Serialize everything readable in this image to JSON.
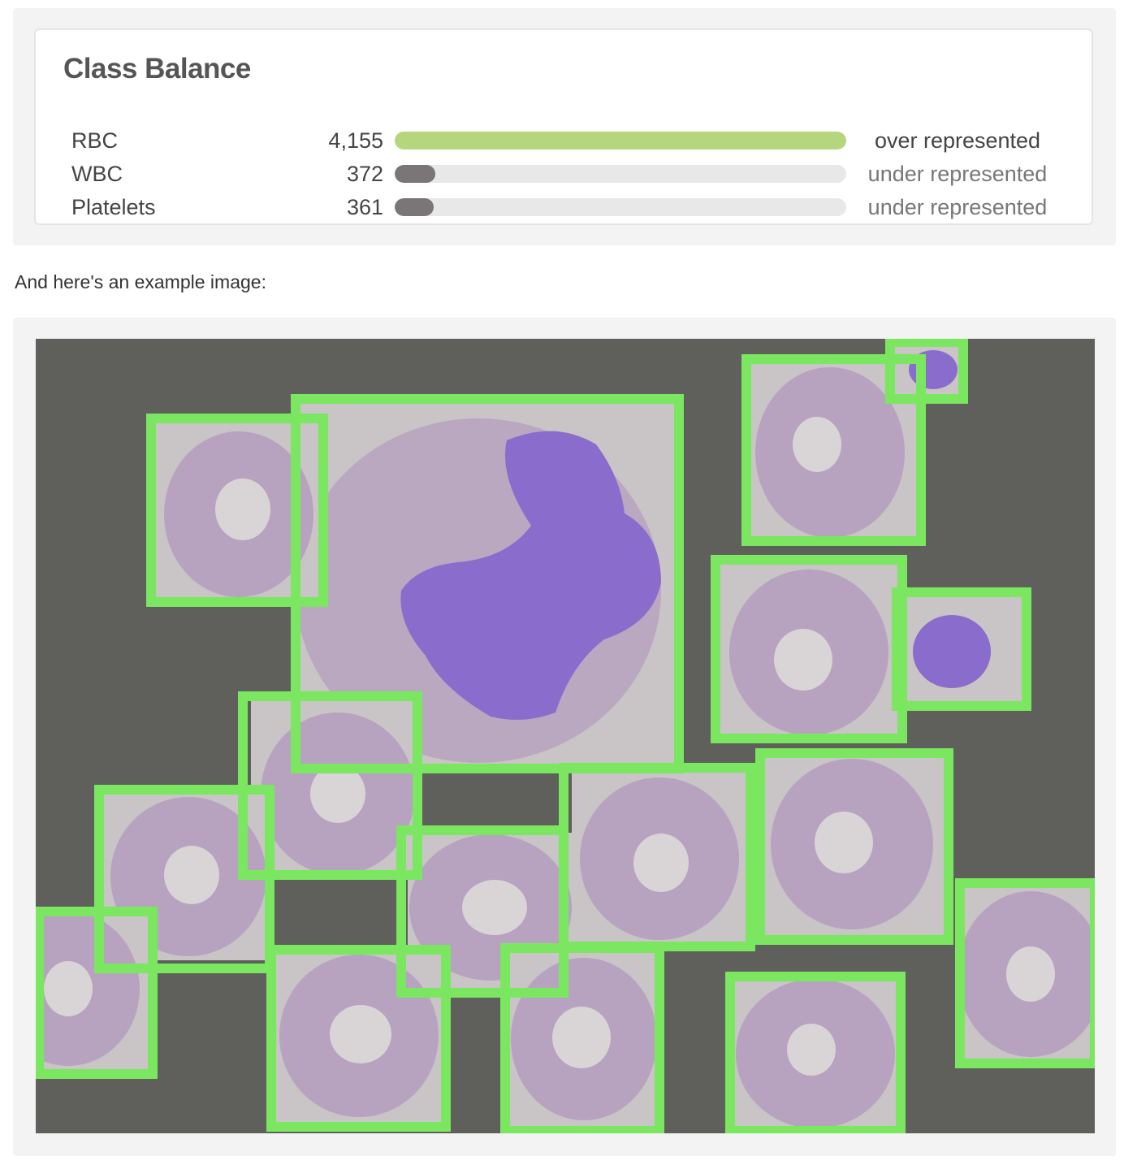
{
  "class_balance": {
    "title": "Class Balance",
    "rows": [
      {
        "label": "RBC",
        "count": "4,155",
        "value": 4155,
        "status": "over represented"
      },
      {
        "label": "WBC",
        "count": "372",
        "value": 372,
        "status": "under represented"
      },
      {
        "label": "Platelets",
        "count": "361",
        "value": 361,
        "status": "under represented"
      }
    ],
    "colors": {
      "over": "#b5d67d",
      "under": "#7a7576",
      "track": "#e8e8e8",
      "status_over": "#444444",
      "status_under": "#777777"
    }
  },
  "caption": "And here's an example image:",
  "example_image": {
    "background": "#5f5f5c",
    "box_color": "#7be660",
    "cell_color": "#b7a3bf",
    "nucleus_color": "#8a6ccc"
  }
}
